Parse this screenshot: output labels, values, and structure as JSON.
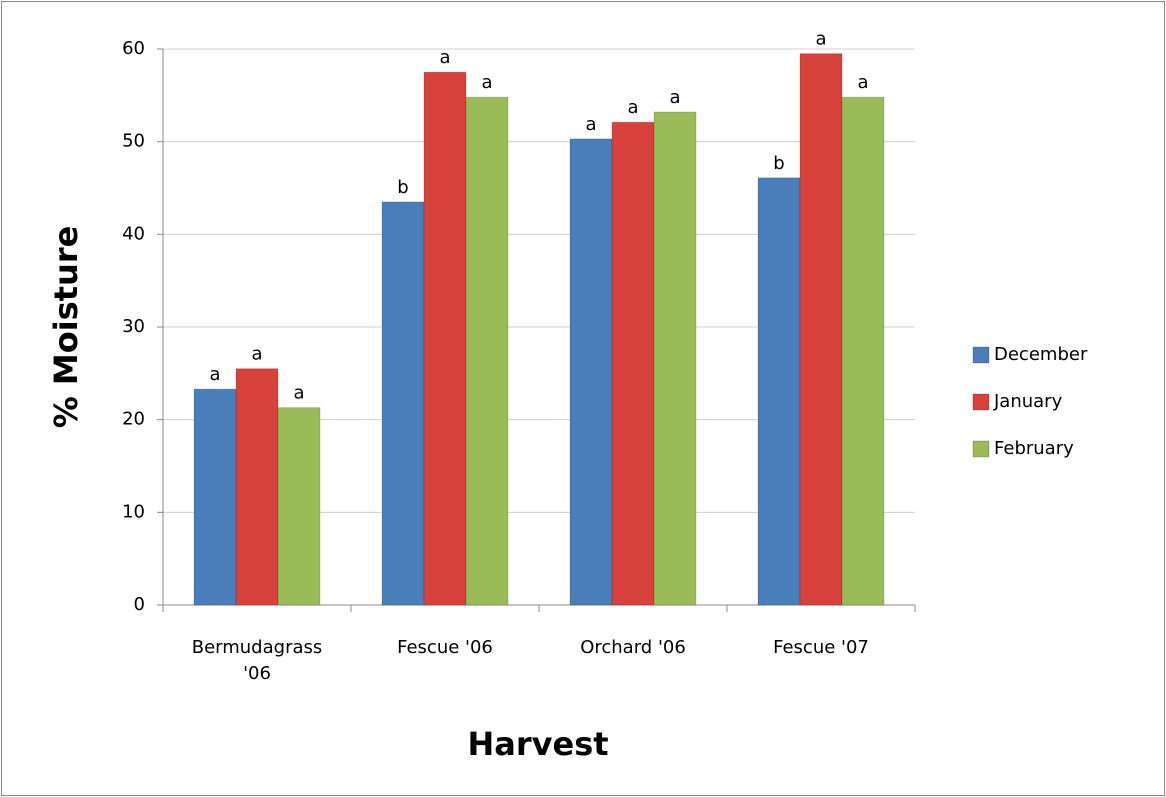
{
  "chart_data": {
    "type": "bar",
    "x_label": "Harvest",
    "y_label": "% Moisture",
    "categories": [
      "Bermudagrass '06",
      "Fescue '06",
      "Orchard '06",
      "Fescue '07"
    ],
    "series": [
      {
        "name": "December",
        "color": "#4a7ebb",
        "values": [
          23.3,
          43.5,
          50.3,
          46.1
        ],
        "significance": [
          "a",
          "b",
          "a",
          "b"
        ]
      },
      {
        "name": "January",
        "color": "#d9413d",
        "values": [
          25.5,
          57.5,
          52.1,
          59.5
        ],
        "significance": [
          "a",
          "a",
          "a",
          "a"
        ]
      },
      {
        "name": "February",
        "color": "#9bbb59",
        "values": [
          21.3,
          54.8,
          53.2,
          54.8
        ],
        "significance": [
          "a",
          "a",
          "a",
          "a"
        ]
      }
    ],
    "ylim": [
      0,
      60
    ],
    "yticks": [
      0,
      10,
      20,
      30,
      40,
      50,
      60
    ],
    "grid": true,
    "legend": "right"
  }
}
